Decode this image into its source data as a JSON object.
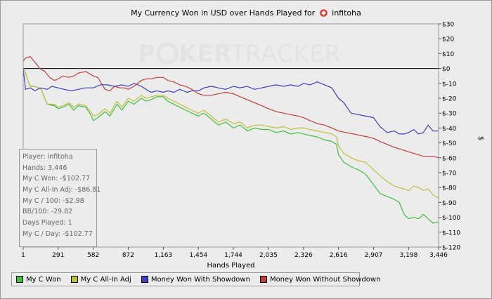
{
  "window": {
    "title_prefix": "My Currency Won in USD over Hands Played for",
    "player_name": "infitoha",
    "logo_icon": "pokertracker-suit-icon"
  },
  "watermark": {
    "text_a": "P",
    "text_b": "KER",
    "text_c": "TRACKER"
  },
  "stats": {
    "player": "Player: infitoha",
    "hands": "Hands: 3,446",
    "won": "My C Won: -$102.77",
    "allin": "My C All-In Adj: -$86.81",
    "per100": "My C / 100: -$2.98",
    "bb100": "BB/100: -29.82",
    "days": "Days Played: 1",
    "perday": "My C / Day: -$102.77"
  },
  "chart_data": {
    "type": "line",
    "xlabel": "Hands Played",
    "ylabel": "$",
    "xlim": [
      1,
      3446
    ],
    "ylim": [
      -120,
      30
    ],
    "x_ticks": [
      1,
      291,
      582,
      872,
      1163,
      1454,
      1744,
      2035,
      2326,
      2616,
      2907,
      3198,
      3446
    ],
    "x_tick_labels": [
      "1",
      "291",
      "582",
      "872",
      "1,163",
      "1,454",
      "1,744",
      "2,035",
      "2,326",
      "2,616",
      "2,907",
      "3,198",
      "3,446"
    ],
    "y_ticks": [
      30,
      20,
      10,
      0,
      -10,
      -20,
      -30,
      -40,
      -50,
      -60,
      -70,
      -80,
      -90,
      -100,
      -110,
      -120
    ],
    "y_tick_labels": [
      "$30",
      "$20",
      "$10",
      "$0",
      "$-10",
      "$-20",
      "$-30",
      "$-40",
      "$-50",
      "$-60",
      "$-70",
      "$-80",
      "$-90",
      "$-100",
      "$-110",
      "$-120"
    ],
    "legend_position": "bottom-left",
    "series": [
      {
        "name": "My C Won",
        "color": "#3fbf3f",
        "points": [
          [
            1,
            0
          ],
          [
            20,
            -3
          ],
          [
            40,
            -8
          ],
          [
            60,
            -12
          ],
          [
            100,
            -12
          ],
          [
            150,
            -14
          ],
          [
            200,
            -24
          ],
          [
            260,
            -25
          ],
          [
            291,
            -27
          ],
          [
            330,
            -26
          ],
          [
            380,
            -24
          ],
          [
            420,
            -28
          ],
          [
            460,
            -25
          ],
          [
            520,
            -26
          ],
          [
            560,
            -31
          ],
          [
            582,
            -35
          ],
          [
            620,
            -33
          ],
          [
            680,
            -29
          ],
          [
            720,
            -32
          ],
          [
            780,
            -24
          ],
          [
            820,
            -28
          ],
          [
            872,
            -22
          ],
          [
            920,
            -24
          ],
          [
            980,
            -20
          ],
          [
            1020,
            -22
          ],
          [
            1060,
            -21
          ],
          [
            1110,
            -19
          ],
          [
            1163,
            -19
          ],
          [
            1200,
            -22
          ],
          [
            1250,
            -24
          ],
          [
            1300,
            -26
          ],
          [
            1350,
            -28
          ],
          [
            1400,
            -30
          ],
          [
            1454,
            -32
          ],
          [
            1500,
            -30
          ],
          [
            1560,
            -34
          ],
          [
            1620,
            -38
          ],
          [
            1680,
            -36
          ],
          [
            1744,
            -40
          ],
          [
            1800,
            -38
          ],
          [
            1860,
            -42
          ],
          [
            1920,
            -40
          ],
          [
            1980,
            -41
          ],
          [
            2035,
            -41
          ],
          [
            2100,
            -43
          ],
          [
            2160,
            -42
          ],
          [
            2220,
            -44
          ],
          [
            2280,
            -43
          ],
          [
            2326,
            -44
          ],
          [
            2380,
            -45
          ],
          [
            2440,
            -46
          ],
          [
            2500,
            -48
          ],
          [
            2560,
            -49
          ],
          [
            2600,
            -51
          ],
          [
            2616,
            -58
          ],
          [
            2660,
            -63
          ],
          [
            2720,
            -66
          ],
          [
            2780,
            -68
          ],
          [
            2840,
            -71
          ],
          [
            2907,
            -78
          ],
          [
            2960,
            -84
          ],
          [
            3020,
            -86
          ],
          [
            3080,
            -88
          ],
          [
            3120,
            -90
          ],
          [
            3160,
            -98
          ],
          [
            3198,
            -101
          ],
          [
            3240,
            -100
          ],
          [
            3280,
            -101
          ],
          [
            3320,
            -98
          ],
          [
            3360,
            -101
          ],
          [
            3400,
            -104
          ],
          [
            3446,
            -103
          ]
        ]
      },
      {
        "name": "My C All-In Adj",
        "color": "#bfbf3f",
        "points": [
          [
            1,
            0
          ],
          [
            20,
            -3
          ],
          [
            40,
            -8
          ],
          [
            60,
            -12
          ],
          [
            100,
            -12
          ],
          [
            150,
            -14
          ],
          [
            200,
            -24
          ],
          [
            260,
            -24
          ],
          [
            291,
            -26
          ],
          [
            330,
            -25
          ],
          [
            380,
            -23
          ],
          [
            420,
            -26
          ],
          [
            460,
            -24
          ],
          [
            520,
            -25
          ],
          [
            560,
            -29
          ],
          [
            582,
            -32
          ],
          [
            620,
            -31
          ],
          [
            680,
            -27
          ],
          [
            720,
            -30
          ],
          [
            780,
            -22
          ],
          [
            820,
            -26
          ],
          [
            872,
            -20
          ],
          [
            920,
            -22
          ],
          [
            980,
            -18
          ],
          [
            1020,
            -20
          ],
          [
            1060,
            -19
          ],
          [
            1110,
            -18
          ],
          [
            1163,
            -18
          ],
          [
            1200,
            -20
          ],
          [
            1250,
            -22
          ],
          [
            1300,
            -24
          ],
          [
            1350,
            -26
          ],
          [
            1400,
            -28
          ],
          [
            1454,
            -30
          ],
          [
            1500,
            -28
          ],
          [
            1560,
            -32
          ],
          [
            1620,
            -36
          ],
          [
            1680,
            -34
          ],
          [
            1744,
            -37
          ],
          [
            1800,
            -36
          ],
          [
            1860,
            -40
          ],
          [
            1920,
            -38
          ],
          [
            1980,
            -38
          ],
          [
            2035,
            -39
          ],
          [
            2100,
            -40
          ],
          [
            2160,
            -39
          ],
          [
            2220,
            -41
          ],
          [
            2280,
            -40
          ],
          [
            2326,
            -40
          ],
          [
            2380,
            -41
          ],
          [
            2440,
            -42
          ],
          [
            2500,
            -43
          ],
          [
            2560,
            -44
          ],
          [
            2600,
            -46
          ],
          [
            2616,
            -52
          ],
          [
            2660,
            -57
          ],
          [
            2720,
            -60
          ],
          [
            2780,
            -62
          ],
          [
            2840,
            -63
          ],
          [
            2907,
            -68
          ],
          [
            2960,
            -72
          ],
          [
            3020,
            -76
          ],
          [
            3080,
            -79
          ],
          [
            3120,
            -80
          ],
          [
            3160,
            -81
          ],
          [
            3198,
            -82
          ],
          [
            3240,
            -79
          ],
          [
            3280,
            -80
          ],
          [
            3320,
            -82
          ],
          [
            3360,
            -81
          ],
          [
            3400,
            -85
          ],
          [
            3446,
            -87
          ]
        ]
      },
      {
        "name": "Money Won With Showdown",
        "color": "#3f3fbf",
        "points": [
          [
            1,
            0
          ],
          [
            20,
            -14
          ],
          [
            60,
            -13
          ],
          [
            100,
            -15
          ],
          [
            140,
            -13
          ],
          [
            200,
            -14
          ],
          [
            240,
            -12
          ],
          [
            291,
            -13
          ],
          [
            340,
            -14
          ],
          [
            400,
            -15
          ],
          [
            460,
            -14
          ],
          [
            520,
            -13
          ],
          [
            582,
            -13
          ],
          [
            640,
            -11
          ],
          [
            700,
            -11
          ],
          [
            760,
            -12
          ],
          [
            820,
            -11
          ],
          [
            872,
            -12
          ],
          [
            920,
            -10
          ],
          [
            980,
            -12
          ],
          [
            1020,
            -14
          ],
          [
            1060,
            -16
          ],
          [
            1110,
            -15
          ],
          [
            1163,
            -16
          ],
          [
            1200,
            -15
          ],
          [
            1250,
            -16
          ],
          [
            1300,
            -14
          ],
          [
            1360,
            -16
          ],
          [
            1400,
            -15
          ],
          [
            1454,
            -15
          ],
          [
            1500,
            -13
          ],
          [
            1560,
            -12
          ],
          [
            1620,
            -13
          ],
          [
            1680,
            -14
          ],
          [
            1744,
            -12
          ],
          [
            1800,
            -13
          ],
          [
            1860,
            -12
          ],
          [
            1920,
            -14
          ],
          [
            1980,
            -13
          ],
          [
            2035,
            -12
          ],
          [
            2100,
            -11
          ],
          [
            2160,
            -12
          ],
          [
            2220,
            -11
          ],
          [
            2280,
            -12
          ],
          [
            2326,
            -10
          ],
          [
            2380,
            -11
          ],
          [
            2440,
            -9
          ],
          [
            2500,
            -11
          ],
          [
            2560,
            -13
          ],
          [
            2616,
            -20
          ],
          [
            2660,
            -23
          ],
          [
            2720,
            -30
          ],
          [
            2780,
            -31
          ],
          [
            2840,
            -32
          ],
          [
            2907,
            -33
          ],
          [
            2960,
            -39
          ],
          [
            3020,
            -43
          ],
          [
            3080,
            -42
          ],
          [
            3120,
            -44
          ],
          [
            3160,
            -44
          ],
          [
            3198,
            -43
          ],
          [
            3240,
            -41
          ],
          [
            3280,
            -44
          ],
          [
            3320,
            -43
          ],
          [
            3360,
            -38
          ],
          [
            3400,
            -42
          ],
          [
            3446,
            -42
          ]
        ]
      },
      {
        "name": "Money Won Without Showdown",
        "color": "#bf3f3f",
        "points": [
          [
            1,
            5
          ],
          [
            20,
            7
          ],
          [
            60,
            8
          ],
          [
            100,
            4
          ],
          [
            140,
            0
          ],
          [
            180,
            -2
          ],
          [
            220,
            -6
          ],
          [
            260,
            -8
          ],
          [
            291,
            -7
          ],
          [
            330,
            -5
          ],
          [
            380,
            -6
          ],
          [
            420,
            -5
          ],
          [
            460,
            -3
          ],
          [
            520,
            -2
          ],
          [
            582,
            -5
          ],
          [
            620,
            -6
          ],
          [
            680,
            -14
          ],
          [
            720,
            -15
          ],
          [
            760,
            -12
          ],
          [
            800,
            -13
          ],
          [
            840,
            -13
          ],
          [
            872,
            -14
          ],
          [
            920,
            -12
          ],
          [
            980,
            -8
          ],
          [
            1020,
            -7
          ],
          [
            1060,
            -7
          ],
          [
            1110,
            -6
          ],
          [
            1163,
            -6
          ],
          [
            1200,
            -8
          ],
          [
            1250,
            -9
          ],
          [
            1300,
            -11
          ],
          [
            1350,
            -12
          ],
          [
            1400,
            -14
          ],
          [
            1454,
            -17
          ],
          [
            1500,
            -18
          ],
          [
            1560,
            -18
          ],
          [
            1620,
            -17
          ],
          [
            1680,
            -16
          ],
          [
            1744,
            -17
          ],
          [
            1800,
            -19
          ],
          [
            1860,
            -21
          ],
          [
            1920,
            -23
          ],
          [
            1980,
            -25
          ],
          [
            2035,
            -27
          ],
          [
            2100,
            -29
          ],
          [
            2160,
            -30
          ],
          [
            2220,
            -31
          ],
          [
            2280,
            -32
          ],
          [
            2326,
            -33
          ],
          [
            2380,
            -35
          ],
          [
            2440,
            -37
          ],
          [
            2500,
            -38
          ],
          [
            2560,
            -40
          ],
          [
            2616,
            -42
          ],
          [
            2680,
            -43
          ],
          [
            2740,
            -44
          ],
          [
            2800,
            -45
          ],
          [
            2860,
            -46
          ],
          [
            2907,
            -47
          ],
          [
            2960,
            -49
          ],
          [
            3020,
            -51
          ],
          [
            3080,
            -53
          ],
          [
            3120,
            -54
          ],
          [
            3160,
            -55
          ],
          [
            3198,
            -56
          ],
          [
            3240,
            -57
          ],
          [
            3280,
            -58
          ],
          [
            3320,
            -59
          ],
          [
            3360,
            -59
          ],
          [
            3400,
            -59
          ],
          [
            3446,
            -60
          ]
        ]
      }
    ]
  }
}
